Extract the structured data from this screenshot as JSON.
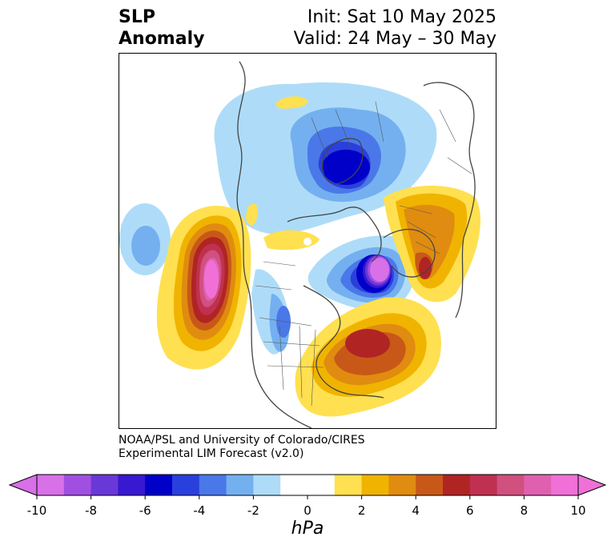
{
  "title": {
    "left_line1": "SLP",
    "left_line2": "Anomaly",
    "right_line1": "Init: Sat 10 May 2025",
    "right_line2": "Valid: 24 May – 30 May"
  },
  "credit": {
    "line1": "NOAA/PSL and University of Colorado/CIRES",
    "line2": "Experimental LIM Forecast (v2.0)"
  },
  "colorbar": {
    "unit": "hPa",
    "ticks": [
      "-10",
      "-8",
      "-6",
      "-4",
      "-2",
      "0",
      "2",
      "4",
      "6",
      "8",
      "10"
    ],
    "colors": [
      "#d870e8",
      "#a050e0",
      "#6a38d8",
      "#3818d0",
      "#0000c8",
      "#2a40dc",
      "#4a78e8",
      "#74b0f0",
      "#aedcf8",
      "#ffffff",
      "#ffffff",
      "#ffe050",
      "#f0b400",
      "#e08c10",
      "#c85818",
      "#b02424",
      "#c03050",
      "#d05080",
      "#e060b0",
      "#f070d8"
    ]
  },
  "map": {
    "projection": "north-polar-stereographic",
    "anomalies": [
      {
        "name": "Arctic low",
        "sign": "negative",
        "peak_hPa": -6
      },
      {
        "name": "North Pacific high",
        "sign": "positive",
        "peak_hPa": 10
      },
      {
        "name": "Greenland–Baffin low",
        "sign": "negative",
        "peak_hPa": -10
      },
      {
        "name": "Northeast Pacific low",
        "sign": "negative",
        "peak_hPa": -3
      },
      {
        "name": "Eastern Canada / NW Atlantic high",
        "sign": "positive",
        "peak_hPa": 6
      },
      {
        "name": "Western Russia high",
        "sign": "positive",
        "peak_hPa": 5
      },
      {
        "name": "Central North America low",
        "sign": "negative",
        "peak_hPa": -4
      }
    ]
  }
}
